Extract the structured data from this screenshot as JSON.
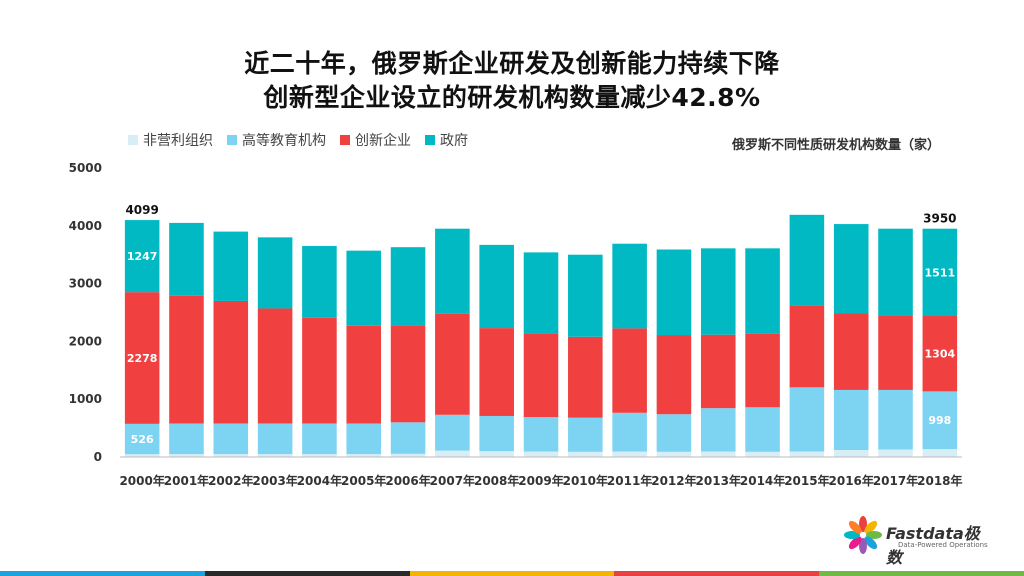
{
  "title_line1": "近二十年，俄罗斯企业研发及创新能力持续下降",
  "title_line2": "创新型企业设立的研发机构数量减少42.8%",
  "chart_subtitle": "俄罗斯不同性质研发机构数量（家）",
  "logo": {
    "name": "Fastdata极数",
    "tagline": "Data-Powered Operations"
  },
  "colors": {
    "nonprofit": "#d8eef6",
    "higher_ed": "#7dd3f2",
    "enterprise": "#f04040",
    "government": "#00b9c3",
    "bottom_bar": [
      "#1aa3dc",
      "#2a2a2a",
      "#f4b400",
      "#e94040",
      "#6dbb44"
    ]
  },
  "chart_data": {
    "type": "bar",
    "stacked": true,
    "categories": [
      "2000年",
      "2001年",
      "2002年",
      "2003年",
      "2004年",
      "2005年",
      "2006年",
      "2007年",
      "2008年",
      "2009年",
      "2010年",
      "2011年",
      "2012年",
      "2013年",
      "2014年",
      "2015年",
      "2016年",
      "2017年",
      "2018年"
    ],
    "series": [
      {
        "name": "非营利组织",
        "color": "#d8eef6",
        "values": [
          48,
          50,
          50,
          50,
          50,
          50,
          55,
          110,
          100,
          95,
          90,
          95,
          90,
          95,
          90,
          95,
          120,
          130,
          137
        ]
      },
      {
        "name": "高等教育机构",
        "color": "#7dd3f2",
        "values": [
          526,
          530,
          530,
          530,
          530,
          530,
          545,
          620,
          610,
          595,
          590,
          670,
          650,
          750,
          770,
          1110,
          1040,
          1030,
          998
        ]
      },
      {
        "name": "创新企业",
        "color": "#f04040",
        "values": [
          2278,
          2210,
          2120,
          1990,
          1830,
          1690,
          1680,
          1750,
          1520,
          1450,
          1400,
          1460,
          1370,
          1270,
          1270,
          1420,
          1330,
          1290,
          1304
        ]
      },
      {
        "name": "政府",
        "color": "#00b9c3",
        "values": [
          1247,
          1260,
          1200,
          1230,
          1240,
          1300,
          1350,
          1470,
          1440,
          1400,
          1420,
          1465,
          1480,
          1495,
          1480,
          1565,
          1540,
          1500,
          1511
        ]
      }
    ],
    "data_labels": [
      {
        "category": "2000年",
        "series": "高等教育机构",
        "text": "526"
      },
      {
        "category": "2000年",
        "series": "创新企业",
        "text": "2278"
      },
      {
        "category": "2000年",
        "series": "政府",
        "text": "1247"
      },
      {
        "category": "2018年",
        "series": "高等教育机构",
        "text": "998"
      },
      {
        "category": "2018年",
        "series": "创新企业",
        "text": "1304"
      },
      {
        "category": "2018年",
        "series": "政府",
        "text": "1511"
      }
    ],
    "total_labels": [
      {
        "category": "2000年",
        "text": "4099"
      },
      {
        "category": "2018年",
        "text": "3950"
      }
    ],
    "y_ticks": [
      0,
      1000,
      2000,
      3000,
      4000,
      5000
    ],
    "ylim": [
      0,
      5000
    ],
    "grid": false,
    "legend": "top-left"
  }
}
